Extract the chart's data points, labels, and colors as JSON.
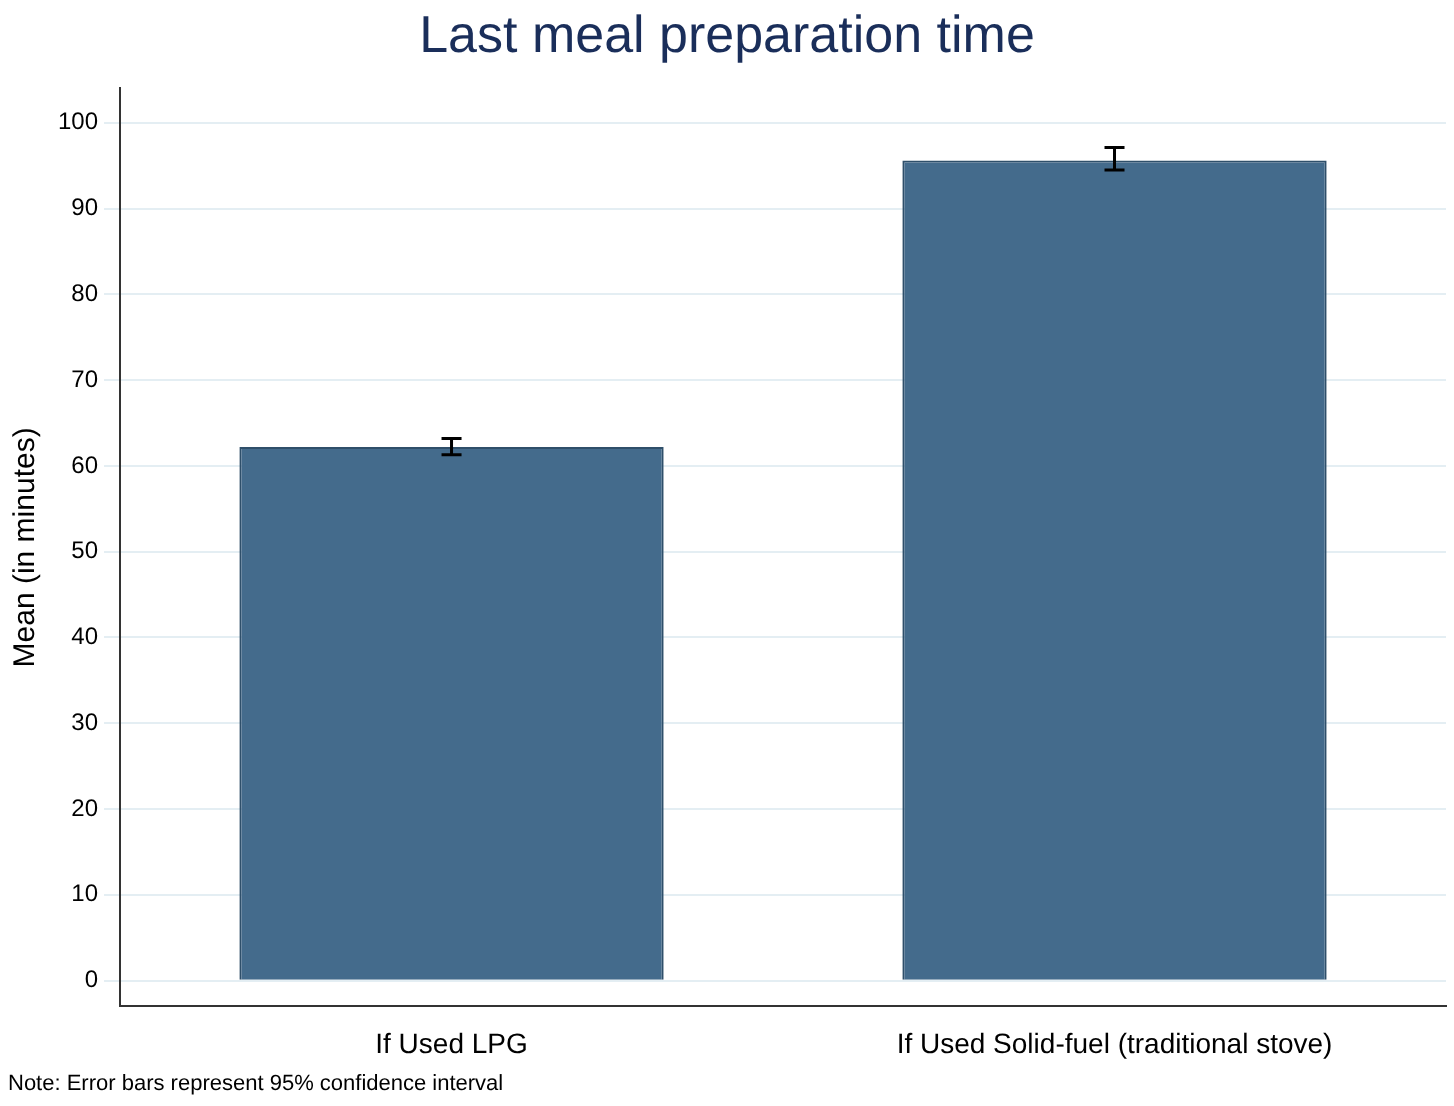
{
  "chart_data": {
    "type": "bar",
    "title": "Last meal preparation time",
    "ylabel": "Mean (in minutes)",
    "categories": [
      "If Used LPG",
      "If Used Solid-fuel (traditional stove)"
    ],
    "values": [
      62.2,
      95.6
    ],
    "color": "#446b8c",
    "errors": [
      [
        61.3,
        63.2
      ],
      [
        94.5,
        97.1
      ]
    ],
    "ylim": [
      -3,
      104
    ],
    "yticks": [
      0,
      10,
      20,
      30,
      40,
      50,
      60,
      70,
      80,
      90,
      100
    ],
    "grid": "y",
    "annotations": [
      "Note: Error bars represent 95% confidence interval"
    ]
  }
}
